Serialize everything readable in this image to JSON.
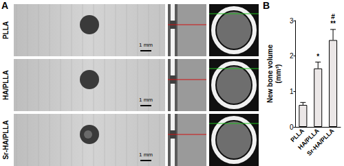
{
  "panel_labels": [
    "A",
    "B"
  ],
  "image_panel": {
    "rows": [
      "PLLA",
      "HA/PLLA",
      "Sr-HA/PLLA"
    ],
    "scale_bar": "1 mm"
  },
  "chart_data": {
    "type": "bar",
    "y_label": "New bone volume\n(mm³)",
    "categories": [
      "PLLA",
      "HA/PLLA",
      "Sr-HA/PLLA"
    ],
    "values": [
      0.62,
      1.65,
      2.45
    ],
    "errors": [
      0.07,
      0.18,
      0.3
    ],
    "color": "#ebe7e7",
    "ylim": [
      0,
      3
    ],
    "yticks": [
      0,
      1,
      2,
      3
    ],
    "grid": false,
    "annotations": [
      {
        "category": "HA/PLLA",
        "text": "*"
      },
      {
        "category": "Sr-HA/PLLA",
        "text": "**"
      },
      {
        "category": "Sr-HA/PLLA",
        "text": "#"
      }
    ]
  }
}
